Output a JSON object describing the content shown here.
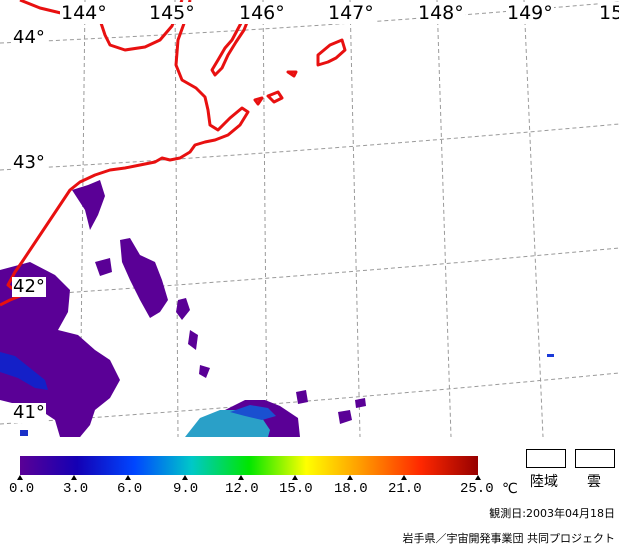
{
  "map": {
    "longitude_labels": [
      "144°",
      "145°",
      "146°",
      "147°",
      "148°",
      "149°",
      "15"
    ],
    "latitude_labels": [
      "44°",
      "43°",
      "42°",
      "41°"
    ],
    "coastline_color": "#e81010",
    "graticule_color": "#9a9a9a"
  },
  "legend": {
    "scale_ticks": [
      "0.0",
      "3.0",
      "6.0",
      "9.0",
      "12.0",
      "15.0",
      "18.0",
      "21.0",
      "25.0"
    ],
    "unit": "℃",
    "land_label": "陸域",
    "cloud_label": "雲",
    "colors": [
      "#5a0096",
      "#1400b4",
      "#0046ff",
      "#00c8c8",
      "#00e600",
      "#ffff00",
      "#ff9600",
      "#ff2800",
      "#960000"
    ]
  },
  "footer": {
    "observation_date": "観測日:2003年04月18日",
    "credit": "岩手県／宇宙開発事業団 共同プロジェクト"
  }
}
